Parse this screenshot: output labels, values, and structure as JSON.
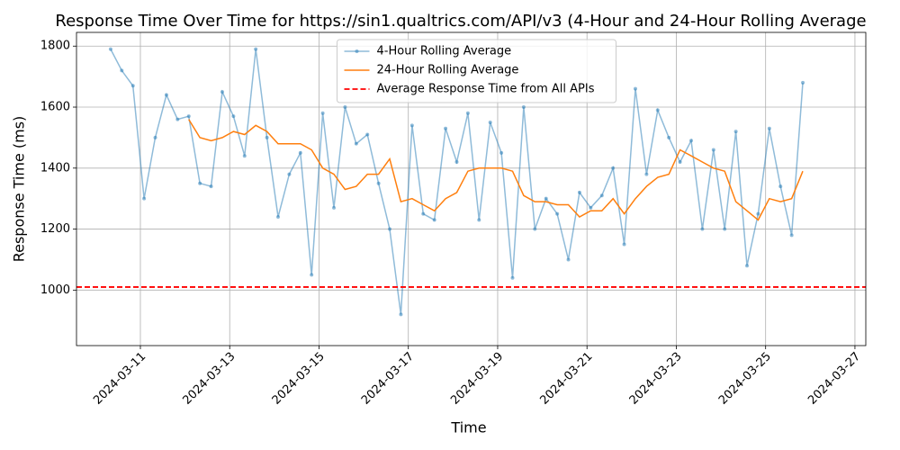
{
  "chart_data": {
    "type": "line",
    "title": "Response Time Over Time for https://sin1.qualtrics.com/API/v3 (4-Hour and 24-Hour Rolling Average",
    "x_label": "Time",
    "y_label": "Response Time (ms)",
    "x": [
      "2024-03-10 08:00",
      "2024-03-10 14:00",
      "2024-03-10 20:00",
      "2024-03-11 02:00",
      "2024-03-11 08:00",
      "2024-03-11 14:00",
      "2024-03-11 20:00",
      "2024-03-12 02:00",
      "2024-03-12 08:00",
      "2024-03-12 14:00",
      "2024-03-12 20:00",
      "2024-03-13 02:00",
      "2024-03-13 08:00",
      "2024-03-13 14:00",
      "2024-03-13 20:00",
      "2024-03-14 02:00",
      "2024-03-14 08:00",
      "2024-03-14 14:00",
      "2024-03-14 20:00",
      "2024-03-15 02:00",
      "2024-03-15 08:00",
      "2024-03-15 14:00",
      "2024-03-15 20:00",
      "2024-03-16 02:00",
      "2024-03-16 08:00",
      "2024-03-16 14:00",
      "2024-03-16 20:00",
      "2024-03-17 02:00",
      "2024-03-17 08:00",
      "2024-03-17 14:00",
      "2024-03-17 20:00",
      "2024-03-18 02:00",
      "2024-03-18 08:00",
      "2024-03-18 14:00",
      "2024-03-18 20:00",
      "2024-03-19 02:00",
      "2024-03-19 08:00",
      "2024-03-19 14:00",
      "2024-03-19 20:00",
      "2024-03-20 02:00",
      "2024-03-20 08:00",
      "2024-03-20 14:00",
      "2024-03-20 20:00",
      "2024-03-21 02:00",
      "2024-03-21 08:00",
      "2024-03-21 14:00",
      "2024-03-21 20:00",
      "2024-03-22 02:00",
      "2024-03-22 08:00",
      "2024-03-22 14:00",
      "2024-03-22 20:00",
      "2024-03-23 02:00",
      "2024-03-23 08:00",
      "2024-03-23 14:00",
      "2024-03-23 20:00",
      "2024-03-24 02:00",
      "2024-03-24 08:00",
      "2024-03-24 14:00",
      "2024-03-24 20:00",
      "2024-03-25 02:00",
      "2024-03-25 08:00",
      "2024-03-25 14:00",
      "2024-03-25 20:00"
    ],
    "series": [
      {
        "name": "4-Hour Rolling Average",
        "color": "#1f77b4",
        "marker": true,
        "values": [
          1790,
          1720,
          1670,
          1300,
          1500,
          1640,
          1560,
          1570,
          1350,
          1340,
          1650,
          1570,
          1440,
          1790,
          1500,
          1240,
          1380,
          1450,
          1050,
          1580,
          1270,
          1600,
          1480,
          1510,
          1350,
          1200,
          920,
          1540,
          1250,
          1230,
          1530,
          1420,
          1580,
          1230,
          1550,
          1450,
          1040,
          1600,
          1200,
          1300,
          1250,
          1100,
          1320,
          1270,
          1310,
          1400,
          1150,
          1660,
          1380,
          1590,
          1500,
          1420,
          1490,
          1200,
          1460,
          1200,
          1520,
          1080,
          1250,
          1530,
          1340,
          1180,
          1680
        ]
      },
      {
        "name": "24-Hour Rolling Average",
        "color": "#ff7f0e",
        "marker": false,
        "values": [
          null,
          null,
          null,
          null,
          null,
          null,
          null,
          1560,
          1500,
          1490,
          1500,
          1520,
          1510,
          1540,
          1520,
          1480,
          1480,
          1480,
          1460,
          1400,
          1380,
          1330,
          1340,
          1380,
          1380,
          1430,
          1290,
          1300,
          1280,
          1260,
          1300,
          1320,
          1390,
          1400,
          1400,
          1400,
          1390,
          1310,
          1290,
          1290,
          1280,
          1280,
          1240,
          1260,
          1260,
          1300,
          1250,
          1300,
          1340,
          1370,
          1380,
          1460,
          1440,
          1420,
          1400,
          1390,
          1290,
          1260,
          1230,
          1300,
          1290,
          1300,
          1390
        ]
      }
    ],
    "hline": {
      "y": 1010,
      "label": "Average Response Time from All APIs",
      "color": "#ff0000",
      "style": "dashed"
    },
    "xlim": [
      "2024-03-09 13:40",
      "2024-03-27 05:50"
    ],
    "xticks": [
      "2024-03-11",
      "2024-03-13",
      "2024-03-15",
      "2024-03-17",
      "2024-03-19",
      "2024-03-21",
      "2024-03-23",
      "2024-03-25",
      "2024-03-27"
    ],
    "ylim": [
      818,
      1845
    ],
    "yticks": [
      1000,
      1200,
      1400,
      1600,
      1800
    ],
    "grid": true,
    "legend": "upper center"
  }
}
